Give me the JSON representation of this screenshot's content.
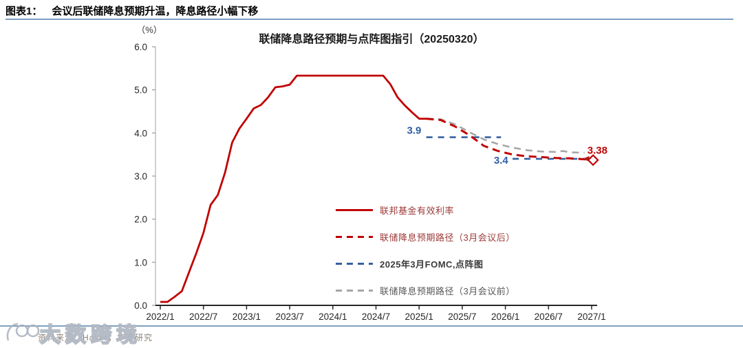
{
  "header": {
    "tag": "图表1：",
    "title": "会议后联储降息预期升温，降息路径小幅下移"
  },
  "chart_data": {
    "type": "line",
    "title": "联储降息路径预期与点阵图指引（20250320）",
    "unit_label": "（%）",
    "ylim": [
      0,
      6
    ],
    "y_ticks": [
      {
        "value": 6,
        "label": "6.0"
      },
      {
        "value": 5,
        "label": "5.0"
      },
      {
        "value": 4,
        "label": "4.0"
      },
      {
        "value": 3,
        "label": "3.0"
      },
      {
        "value": 2,
        "label": "2.0"
      },
      {
        "value": 1,
        "label": "1.0"
      },
      {
        "value": 0,
        "label": "0.0"
      }
    ],
    "x_ticks": [
      {
        "month": 0,
        "label": "2022/1"
      },
      {
        "month": 6,
        "label": "2022/7"
      },
      {
        "month": 12,
        "label": "2023/1"
      },
      {
        "month": 18,
        "label": "2023/7"
      },
      {
        "month": 24,
        "label": "2024/1"
      },
      {
        "month": 30,
        "label": "2024/7"
      },
      {
        "month": 36,
        "label": "2025/1"
      },
      {
        "month": 42,
        "label": "2025/7"
      },
      {
        "month": 48,
        "label": "2026/1"
      },
      {
        "month": 54,
        "label": "2026/7"
      },
      {
        "month": 60,
        "label": "2027/1"
      }
    ],
    "series": [
      {
        "name": "联邦基金有效利率",
        "style": "solid",
        "color": "#c00000",
        "points": [
          [
            0,
            0.08
          ],
          [
            1,
            0.08
          ],
          [
            2,
            0.2
          ],
          [
            3,
            0.33
          ],
          [
            4,
            0.77
          ],
          [
            5,
            1.21
          ],
          [
            6,
            1.68
          ],
          [
            7,
            2.33
          ],
          [
            8,
            2.56
          ],
          [
            9,
            3.08
          ],
          [
            10,
            3.78
          ],
          [
            11,
            4.1
          ],
          [
            12,
            4.33
          ],
          [
            13,
            4.57
          ],
          [
            14,
            4.65
          ],
          [
            15,
            4.83
          ],
          [
            16,
            5.06
          ],
          [
            17,
            5.08
          ],
          [
            18,
            5.12
          ],
          [
            19,
            5.33
          ],
          [
            31,
            5.33
          ],
          [
            32,
            5.13
          ],
          [
            33,
            4.83
          ],
          [
            34,
            4.64
          ],
          [
            35,
            4.48
          ],
          [
            36,
            4.33
          ],
          [
            37,
            4.33
          ]
        ]
      },
      {
        "name": "联储降息预期路径（3月会议后）",
        "style": "dashed",
        "color": "#c00000",
        "points": [
          [
            37,
            4.33
          ],
          [
            39,
            4.3
          ],
          [
            41,
            4.15
          ],
          [
            43,
            3.95
          ],
          [
            45,
            3.7
          ],
          [
            47,
            3.58
          ],
          [
            49,
            3.5
          ],
          [
            51,
            3.46
          ],
          [
            53,
            3.44
          ],
          [
            55,
            3.42
          ],
          [
            57,
            3.41
          ],
          [
            60,
            3.38
          ]
        ],
        "end_value": 3.38
      },
      {
        "name": "2025年3月FOMC,点阵图",
        "style": "dashed",
        "color": "#35609f",
        "segments": [
          [
            [
              37,
              3.9
            ],
            [
              47.4,
              3.9
            ]
          ],
          [
            [
              49,
              3.4
            ],
            [
              59.3,
              3.4
            ]
          ]
        ],
        "dot_plot_medians": {
          "2025": 3.9,
          "2026": 3.4
        }
      },
      {
        "name": "联储降息预期路径（3月会议前）",
        "style": "dashed",
        "color": "#a6a6a6",
        "points": [
          [
            37,
            4.33
          ],
          [
            39,
            4.32
          ],
          [
            41,
            4.2
          ],
          [
            43,
            4.02
          ],
          [
            45,
            3.85
          ],
          [
            47,
            3.74
          ],
          [
            49,
            3.66
          ],
          [
            51,
            3.6
          ],
          [
            53,
            3.57
          ],
          [
            55,
            3.56
          ],
          [
            56,
            3.58
          ],
          [
            57,
            3.55
          ],
          [
            59,
            3.54
          ]
        ]
      }
    ],
    "annotations": [
      {
        "text": "3.9",
        "x": 35.3,
        "y": 4.06,
        "color": "#2d5fa7"
      },
      {
        "text": "3.4",
        "x": 47.4,
        "y": 3.37,
        "color": "#2d5fa7"
      },
      {
        "text": "3.38",
        "x": 60.8,
        "y": 3.6,
        "color": "#c00000"
      }
    ],
    "end_markers": {
      "diamond": {
        "x": 60.2,
        "y": 3.37,
        "color": "#c00000"
      },
      "arrow": {
        "x": 59.2,
        "y": 3.4,
        "color": "#b32020"
      }
    }
  },
  "legend": {
    "items": [
      {
        "label": "联邦基金有效利率",
        "style": "solid",
        "color": "#c00000",
        "text_color": "#9c3a38"
      },
      {
        "label": "联储降息预期路径（3月会议后）",
        "style": "dashed",
        "color": "#c00000",
        "text_color": "#9c3a38"
      },
      {
        "label": "2025年3月FOMC,点阵图",
        "style": "dashed",
        "color": "#35609f",
        "text_color": "#3a3a3a"
      },
      {
        "label": "联储降息预期路径（3月会议前）",
        "style": "dashed",
        "color": "#a6a6a6",
        "text_color": "#595959"
      }
    ]
  },
  "footer": {
    "source": "资料来源：Haver，华泰研究"
  },
  "watermark": {
    "text": "大数跨境"
  }
}
